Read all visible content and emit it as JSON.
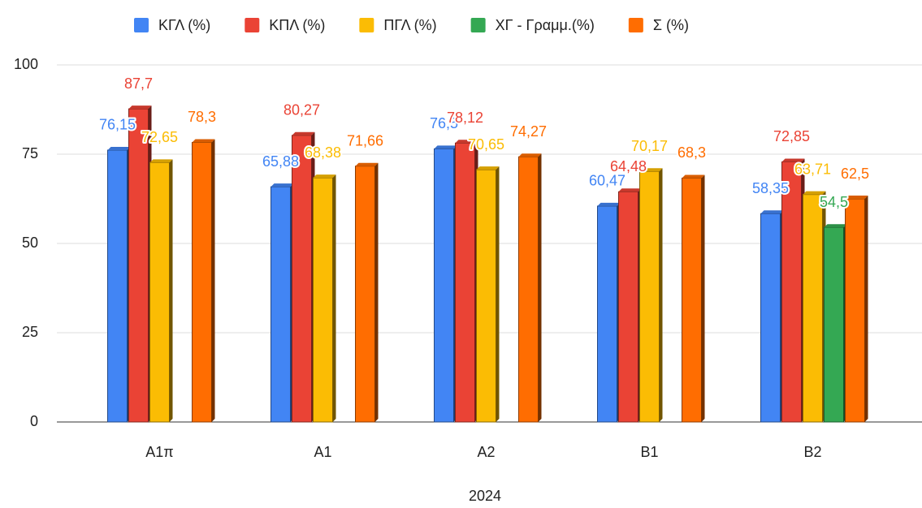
{
  "chart_data": {
    "type": "bar",
    "x_label": "2024",
    "categories": [
      "Α1π",
      "Α1",
      "Α2",
      "Β1",
      "Β2"
    ],
    "series": [
      {
        "name": "ΚΓΛ (%)",
        "color": "#4285f4",
        "values": [
          76.15,
          65.88,
          76.5,
          60.47,
          58.35
        ],
        "value_labels": [
          "76,15",
          "65,88",
          "76,5",
          "60,47",
          "58,35"
        ]
      },
      {
        "name": "ΚΠΛ (%)",
        "color": "#ea4335",
        "values": [
          87.7,
          80.27,
          78.12,
          64.48,
          72.85
        ],
        "value_labels": [
          "87,7",
          "80,27",
          "78,12",
          "64,48",
          "72,85"
        ]
      },
      {
        "name": "ΠΓΛ (%)",
        "color": "#fbbc04",
        "values": [
          72.65,
          68.38,
          70.65,
          70.17,
          63.71
        ],
        "value_labels": [
          "72,65",
          "68,38",
          "70,65",
          "70,17",
          "63,71"
        ]
      },
      {
        "name": "ΧΓ - Γραμμ.(%)",
        "color": "#34a853",
        "values": [
          null,
          null,
          null,
          null,
          54.5
        ],
        "value_labels": [
          null,
          null,
          null,
          null,
          "54,5"
        ]
      },
      {
        "name": "Σ (%)",
        "color": "#ff6d01",
        "values": [
          78.3,
          71.66,
          74.27,
          68.3,
          62.5
        ],
        "value_labels": [
          "78,3",
          "71,66",
          "74,27",
          "68,3",
          "62,5"
        ]
      }
    ],
    "ylim": [
      0,
      100
    ],
    "yticks": [
      0,
      25,
      50,
      75,
      100
    ],
    "grid": true,
    "legend": "top"
  }
}
